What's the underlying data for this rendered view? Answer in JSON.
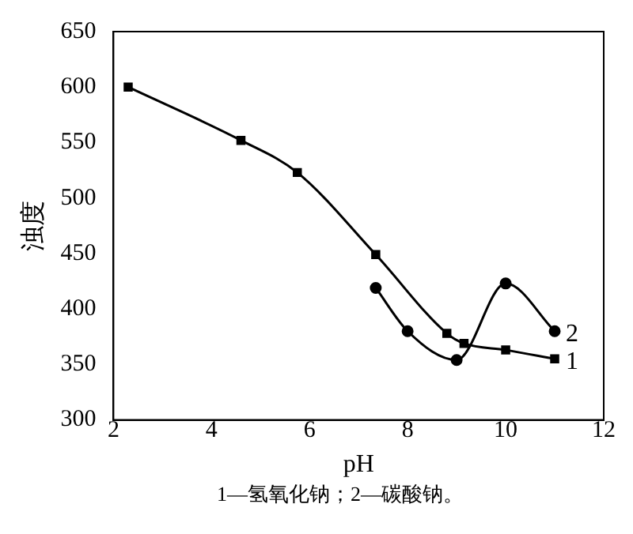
{
  "chart_data": {
    "type": "line",
    "xlabel": "pH",
    "ylabel": "浊度",
    "annotations": [
      "1—氢氧化钠；2—碳酸钠。"
    ],
    "xlim": [
      2,
      12
    ],
    "xticks": [
      2,
      4,
      6,
      8,
      10,
      12
    ],
    "ylim": [
      300,
      650
    ],
    "yticks": [
      300,
      350,
      400,
      450,
      500,
      550,
      600,
      650
    ],
    "grid": false,
    "legend": false,
    "line_style": "solid",
    "series": [
      {
        "name": "1",
        "color": "#000000",
        "marker": "square",
        "x": [
          2.3,
          4.6,
          5.75,
          7.35,
          8.8,
          9.15,
          10,
          11
        ],
        "values": [
          600,
          552,
          523,
          449,
          378,
          369,
          363,
          355
        ]
      },
      {
        "name": "2",
        "color": "#000000",
        "marker": "circle",
        "x": [
          7.35,
          8.0,
          9.0,
          10.0,
          11.0
        ],
        "values": [
          419,
          380,
          354,
          423,
          380
        ]
      }
    ]
  }
}
